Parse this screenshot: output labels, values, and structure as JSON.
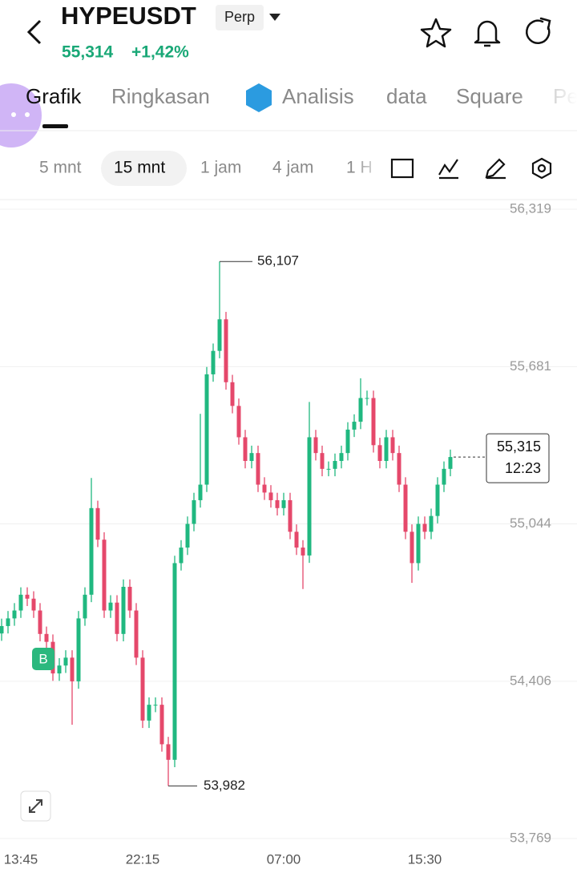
{
  "header": {
    "symbol": "HYPEUSDT",
    "contract": "Perp",
    "price": "55,314",
    "change": "+1,42%"
  },
  "tabs": [
    "Grafik",
    "Ringkasan",
    "Analisis",
    "data",
    "Square",
    "Pe"
  ],
  "intervals": [
    "5 mnt",
    "15 mnt",
    "1 jam",
    "4 jam",
    "1 H"
  ],
  "chart_data": {
    "type": "candlestick",
    "categories": [
      null,
      null,
      null,
      "13:45",
      null,
      null,
      null,
      null,
      null,
      null,
      null,
      null,
      null,
      null,
      null,
      null,
      null,
      null,
      null,
      null,
      null,
      null,
      "22:15",
      null,
      null,
      null,
      null,
      null,
      null,
      null,
      null,
      null,
      null,
      null,
      null,
      null,
      null,
      null,
      null,
      null,
      null,
      null,
      null,
      null,
      "07:00",
      null,
      null,
      null,
      null,
      null,
      null,
      null,
      null,
      null,
      null,
      null,
      null,
      null,
      null,
      null,
      null,
      null,
      null,
      null,
      null,
      null,
      "15:30",
      null,
      null,
      null,
      null
    ],
    "open": [
      54.6,
      54.63,
      54.661,
      54.693,
      54.757,
      54.741,
      54.693,
      54.598,
      54.566,
      54.438,
      54.47,
      54.502,
      54.406,
      54.661,
      54.757,
      55.108,
      54.98,
      54.693,
      54.725,
      54.598,
      54.789,
      54.693,
      54.502,
      54.247,
      54.311,
      54.311,
      54.151,
      54.088,
      54.885,
      54.948,
      55.044,
      55.14,
      55.203,
      55.65,
      55.745,
      55.873,
      55.618,
      55.522,
      55.395,
      55.299,
      55.331,
      55.203,
      55.171,
      55.14,
      55.108,
      55.14,
      55.012,
      54.948,
      54.916,
      55.395,
      55.331,
      55.267,
      55.267,
      55.299,
      55.331,
      55.426,
      55.458,
      55.554,
      55.554,
      55.363,
      55.299,
      55.395,
      55.331,
      55.203,
      55.012,
      54.885,
      55.044,
      55.012,
      55.076,
      55.203,
      55.267
    ],
    "high": [
      54.66,
      54.691,
      54.723,
      54.787,
      54.787,
      54.771,
      54.723,
      54.628,
      54.596,
      54.5,
      54.532,
      54.532,
      54.691,
      54.787,
      55.23,
      55.138,
      55.01,
      54.755,
      54.755,
      54.819,
      54.819,
      54.723,
      54.532,
      54.341,
      54.341,
      54.341,
      54.181,
      54.915,
      54.978,
      55.074,
      55.17,
      55.49,
      55.68,
      55.775,
      56.107,
      55.903,
      55.648,
      55.552,
      55.425,
      55.361,
      55.361,
      55.233,
      55.201,
      55.17,
      55.17,
      55.17,
      55.042,
      54.978,
      55.538,
      55.425,
      55.361,
      55.297,
      55.329,
      55.361,
      55.456,
      55.488,
      55.634,
      55.584,
      55.584,
      55.393,
      55.425,
      55.425,
      55.361,
      55.233,
      55.042,
      55.074,
      55.074,
      55.106,
      55.233,
      55.297,
      55.345
    ],
    "low": [
      54.57,
      54.6,
      54.631,
      54.663,
      54.711,
      54.663,
      54.568,
      54.536,
      54.408,
      54.408,
      54.44,
      54.23,
      54.376,
      54.631,
      54.727,
      54.95,
      54.663,
      54.663,
      54.568,
      54.568,
      54.663,
      54.472,
      54.217,
      54.217,
      54.281,
      54.121,
      53.982,
      54.058,
      54.855,
      54.918,
      55.014,
      55.11,
      55.173,
      55.62,
      55.715,
      55.588,
      55.492,
      55.365,
      55.269,
      55.269,
      55.173,
      55.141,
      55.11,
      55.078,
      55.078,
      54.982,
      54.918,
      54.78,
      54.886,
      55.301,
      55.237,
      55.237,
      55.237,
      55.269,
      55.301,
      55.396,
      55.428,
      55.524,
      55.333,
      55.269,
      55.269,
      55.301,
      55.173,
      54.982,
      54.805,
      54.855,
      54.982,
      54.982,
      55.046,
      55.173,
      55.237
    ],
    "close": [
      54.63,
      54.661,
      54.693,
      54.757,
      54.741,
      54.693,
      54.598,
      54.566,
      54.438,
      54.47,
      54.502,
      54.406,
      54.661,
      54.757,
      55.108,
      54.98,
      54.693,
      54.725,
      54.598,
      54.789,
      54.693,
      54.502,
      54.247,
      54.311,
      54.311,
      54.151,
      54.088,
      54.885,
      54.948,
      55.044,
      55.14,
      55.203,
      55.65,
      55.745,
      55.873,
      55.618,
      55.522,
      55.395,
      55.299,
      55.331,
      55.203,
      55.171,
      55.14,
      55.108,
      55.14,
      55.012,
      54.948,
      54.916,
      55.395,
      55.331,
      55.267,
      55.267,
      55.299,
      55.331,
      55.426,
      55.458,
      55.554,
      55.554,
      55.363,
      55.299,
      55.395,
      55.331,
      55.203,
      55.012,
      54.885,
      55.044,
      55.012,
      55.076,
      55.203,
      55.267,
      55.315
    ],
    "up_color": "#20b880",
    "down_color": "#e5486b",
    "ylim": [
      53.769,
      56.319
    ],
    "yticks": [
      {
        "value": 56.319,
        "label": "56,319"
      },
      {
        "value": 55.681,
        "label": "55,681"
      },
      {
        "value": 55.044,
        "label": "55,044"
      },
      {
        "value": 54.406,
        "label": "54,406"
      },
      {
        "value": 53.769,
        "label": "53,769"
      }
    ],
    "grid": true,
    "high_label": {
      "value": 56.107,
      "label": "56,107"
    },
    "low_label": {
      "value": 53.982,
      "label": "53,982"
    },
    "last_price": {
      "value": 55.315,
      "label": "55,315"
    },
    "countdown": "12:23",
    "trade_marker": "B"
  }
}
